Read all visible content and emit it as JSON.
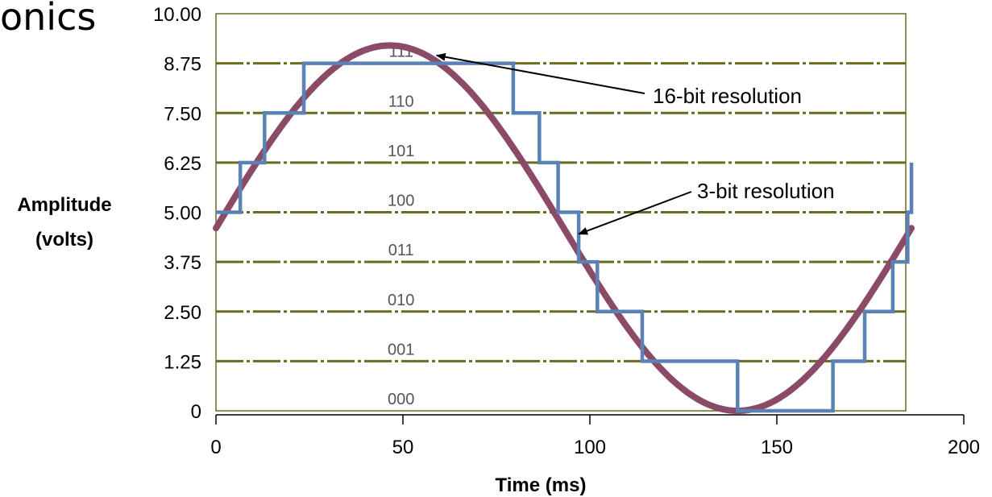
{
  "slide": {
    "title_fragment": "onics"
  },
  "chart_data": {
    "type": "line",
    "xlabel": "Time (ms)",
    "ylabel_lines": [
      "Amplitude",
      "(volts)"
    ],
    "xlim": [
      0,
      200
    ],
    "ylim": [
      0,
      10
    ],
    "x_ticks": [
      0,
      50,
      100,
      150,
      200
    ],
    "y_ticks": [
      0,
      1.25,
      2.5,
      3.75,
      5,
      6.25,
      7.5,
      8.75,
      10
    ],
    "y_tick_labels": [
      "0",
      "1.25",
      "2.50",
      "3.75",
      "5.00",
      "6.25",
      "7.50",
      "8.75",
      "10.00"
    ],
    "grid": "horizontal",
    "series": [
      {
        "name": "16-bit resolution",
        "color": "#8b4a68",
        "function": {
          "type": "sine",
          "offset": 4.6,
          "amplitude": 4.6,
          "period": 186,
          "x_range": [
            0,
            186
          ]
        }
      },
      {
        "name": "3-bit resolution",
        "color": "#5b82b5",
        "steps": [
          {
            "x": 0,
            "y": 5.0
          },
          {
            "x": 6.5,
            "y": 6.25
          },
          {
            "x": 13,
            "y": 7.5
          },
          {
            "x": 23.5,
            "y": 8.75
          },
          {
            "x": 79.5,
            "y": 7.5
          },
          {
            "x": 86.5,
            "y": 6.25
          },
          {
            "x": 91.5,
            "y": 5.0
          },
          {
            "x": 97,
            "y": 3.75
          },
          {
            "x": 102,
            "y": 2.5
          },
          {
            "x": 114,
            "y": 1.25
          },
          {
            "x": 139.5,
            "y": 0
          },
          {
            "x": 165,
            "y": 1.25
          },
          {
            "x": 173.5,
            "y": 2.5
          },
          {
            "x": 181,
            "y": 3.75
          },
          {
            "x": 185,
            "y": 5.0
          }
        ]
      }
    ],
    "level_codes": [
      {
        "code": "000",
        "y": 0
      },
      {
        "code": "001",
        "y": 1.25
      },
      {
        "code": "010",
        "y": 2.5
      },
      {
        "code": "011",
        "y": 3.75
      },
      {
        "code": "100",
        "y": 5.0
      },
      {
        "code": "101",
        "y": 6.25
      },
      {
        "code": "110",
        "y": 7.5
      },
      {
        "code": "111",
        "y": 8.75
      }
    ],
    "annotations": [
      {
        "text": "16-bit resolution",
        "arrow_to": {
          "x": 59,
          "y": 8.95
        }
      },
      {
        "text": "3-bit resolution",
        "arrow_to": {
          "x": 97,
          "y": 4.45
        }
      }
    ],
    "colors": {
      "grid": "#6b6b1f",
      "frame": "#6b6b1f"
    }
  }
}
